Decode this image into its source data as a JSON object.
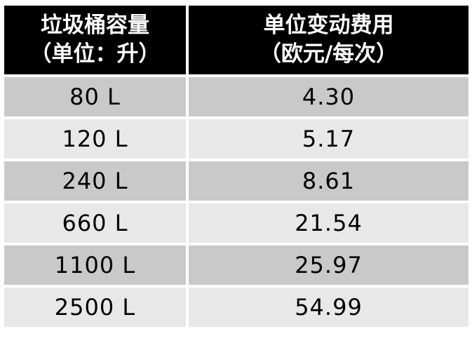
{
  "table": {
    "header": {
      "col1_line1": "垃圾桶容量",
      "col1_line2": "（单位：升）",
      "col2_line1": "单位变动费用",
      "col2_line2": "（欧元/每次）"
    },
    "rows": [
      {
        "capacity": "80 L",
        "cost": "4.30"
      },
      {
        "capacity": "120 L",
        "cost": "5.17"
      },
      {
        "capacity": "240 L",
        "cost": "8.61"
      },
      {
        "capacity": "660 L",
        "cost": "21.54"
      },
      {
        "capacity": "1100 L",
        "cost": "25.97"
      },
      {
        "capacity": "2500 L",
        "cost": "54.99"
      }
    ],
    "colors": {
      "header_bg": "#000000",
      "header_text": "#ffffff",
      "band_dark": "#c9c9c9",
      "band_light": "#e8e8e8",
      "divider": "#ffffff",
      "data_text": "#000000"
    }
  },
  "chart_data": {
    "type": "table",
    "title": "",
    "columns": [
      "垃圾桶容量（单位：升）",
      "单位变动费用（欧元/每次）"
    ],
    "rows": [
      [
        "80 L",
        "4.30"
      ],
      [
        "120 L",
        "5.17"
      ],
      [
        "240 L",
        "8.61"
      ],
      [
        "660 L",
        "21.54"
      ],
      [
        "1100 L",
        "25.97"
      ],
      [
        "2500 L",
        "54.99"
      ]
    ],
    "capacities_liters": [
      80,
      120,
      240,
      660,
      1100,
      2500
    ],
    "unit_variable_cost_eur_per_time": [
      4.3,
      5.17,
      8.61,
      21.54,
      25.97,
      54.99
    ]
  }
}
